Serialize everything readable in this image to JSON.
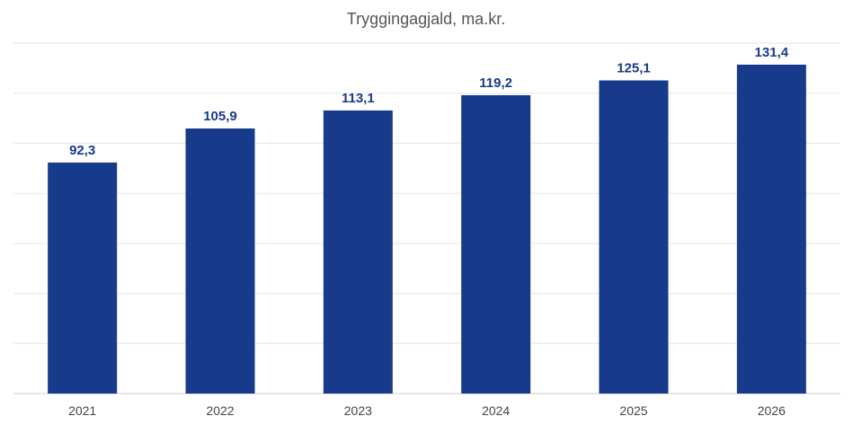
{
  "chart_data": {
    "type": "bar",
    "title": "Tryggingagjald, ma.kr.",
    "xlabel": "",
    "ylabel": "",
    "categories": [
      "2021",
      "2022",
      "2023",
      "2024",
      "2025",
      "2026"
    ],
    "values": [
      92.3,
      105.9,
      113.1,
      119.2,
      125.1,
      131.4
    ],
    "value_labels": [
      "92,3",
      "105,9",
      "113,1",
      "119,2",
      "125,1",
      "131,4"
    ],
    "ylim": [
      0,
      140
    ],
    "grid": true,
    "legend": "none",
    "colors": {
      "bar": "#173a8a",
      "grid": "#e6e6e6",
      "axis": "#cccccc",
      "title": "#555555",
      "data_label": "#1a3a8a"
    }
  }
}
